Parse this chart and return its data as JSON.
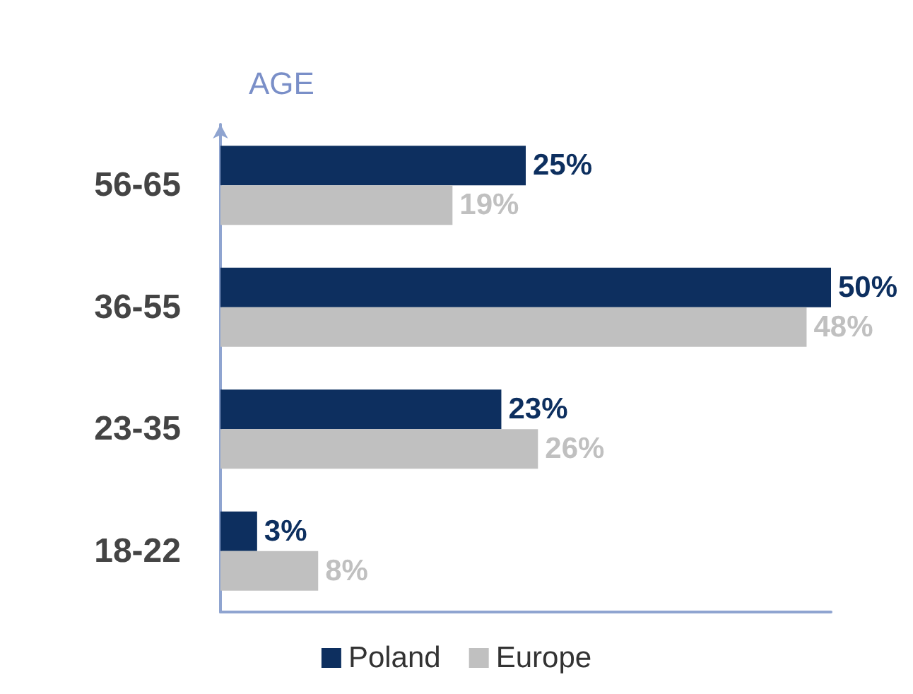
{
  "chart_data": {
    "type": "bar",
    "orientation": "horizontal",
    "ylabel": "AGE",
    "categories": [
      "56-65",
      "36-55",
      "23-35",
      "18-22"
    ],
    "series": [
      {
        "name": "Poland",
        "color": "#0d2f5f",
        "values": [
          25,
          50,
          23,
          3
        ],
        "value_labels": [
          "25%",
          "50%",
          "23%",
          "3%"
        ]
      },
      {
        "name": "Europe",
        "color": "#c0c0c0",
        "values": [
          19,
          48,
          26,
          8
        ],
        "value_labels": [
          "19%",
          "48%",
          "26%",
          "8%"
        ]
      }
    ],
    "tick_labels": "y",
    "grid": false,
    "legend": "bottom"
  }
}
